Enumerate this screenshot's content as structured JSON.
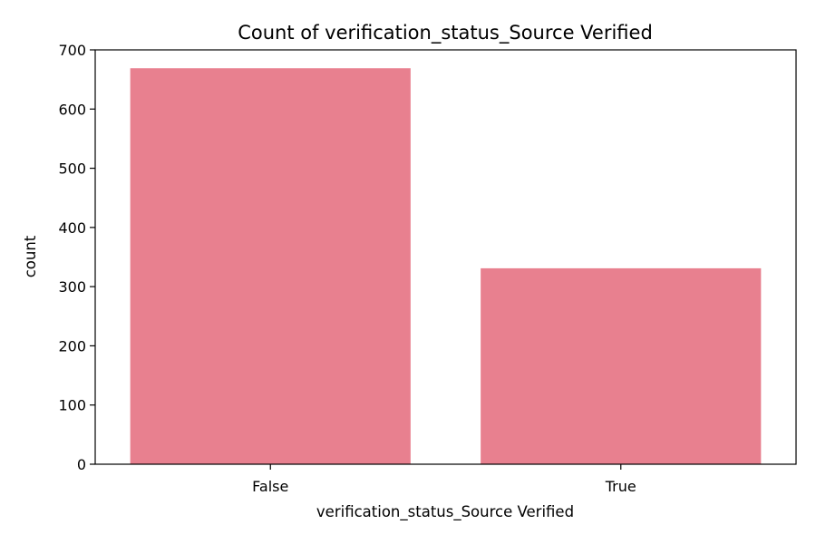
{
  "chart_data": {
    "type": "bar",
    "title": "Count of verification_status_Source Verified",
    "xlabel": "verification_status_Source Verified",
    "ylabel": "count",
    "categories": [
      "False",
      "True"
    ],
    "values": [
      669,
      331
    ],
    "ylim": [
      0,
      700
    ],
    "yticks": [
      0,
      100,
      200,
      300,
      400,
      500,
      600,
      700
    ],
    "bar_color": "#e8808f",
    "grid": false,
    "legend": "none"
  }
}
